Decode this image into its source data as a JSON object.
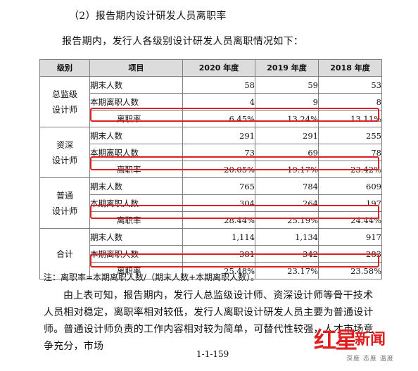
{
  "heading": "（2）报告期内设计研发人员离职率",
  "intro": "报告期内，发行人各级别设计研发人员离职情况如下：",
  "table": {
    "headers": [
      "级别",
      "项目",
      "2020 年度",
      "2019 年度",
      "2018 年度"
    ],
    "groups": [
      {
        "level_line1": "总监级",
        "level_line2": "设计师",
        "rows": [
          {
            "item": "期末人数",
            "v2020": "58",
            "v2019": "59",
            "v2018": "53"
          },
          {
            "item": "本期离职人数",
            "v2020": "4",
            "v2019": "9",
            "v2018": "8"
          },
          {
            "item": "离职率",
            "v2020": "6.45%",
            "v2019": "13.24%",
            "v2018": "13.11%"
          }
        ]
      },
      {
        "level_line1": "资深",
        "level_line2": "设计师",
        "rows": [
          {
            "item": "期末人数",
            "v2020": "291",
            "v2019": "291",
            "v2018": "255"
          },
          {
            "item": "本期离职人数",
            "v2020": "73",
            "v2019": "69",
            "v2018": "78"
          },
          {
            "item": "离职率",
            "v2020": "20.05%",
            "v2019": "19.17%",
            "v2018": "23.42%"
          }
        ]
      },
      {
        "level_line1": "普通",
        "level_line2": "设计师",
        "rows": [
          {
            "item": "期末人数",
            "v2020": "765",
            "v2019": "784",
            "v2018": "609"
          },
          {
            "item": "本期离职人数",
            "v2020": "304",
            "v2019": "264",
            "v2018": "197"
          },
          {
            "item": "离职率",
            "v2020": "28.44%",
            "v2019": "25.19%",
            "v2018": "24.44%"
          }
        ]
      },
      {
        "level_line1": "合计",
        "level_line2": "",
        "rows": [
          {
            "item": "期末人数",
            "v2020": "1,114",
            "v2019": "1,134",
            "v2018": "917"
          },
          {
            "item": "本期离职人数",
            "v2020": "381",
            "v2019": "342",
            "v2018": "283"
          },
          {
            "item": "离职率",
            "v2020": "25.48%",
            "v2019": "23.17%",
            "v2018": "23.58%"
          }
        ]
      }
    ]
  },
  "note": "注：离职率=本期离职人数/（期末人数+本期离职人数）。",
  "paragraph": "由上表可知，报告期内，发行人总监级设计师、资深设计师等骨干技术人员相对稳定，离职率相对较低，发行人离职设计研发人员主要为普通设计师。普通设计师负责的工作内容相对较为简单，可替代性较强，人才市场竞争充分，市场",
  "page_number": "1-1-159",
  "watermark": {
    "brand_red": "红星",
    "brand_news": "新闻",
    "slogan": "深度 态度 温度"
  },
  "colors": {
    "highlight": "#e02020",
    "header_bg": "#dcdcdc"
  }
}
